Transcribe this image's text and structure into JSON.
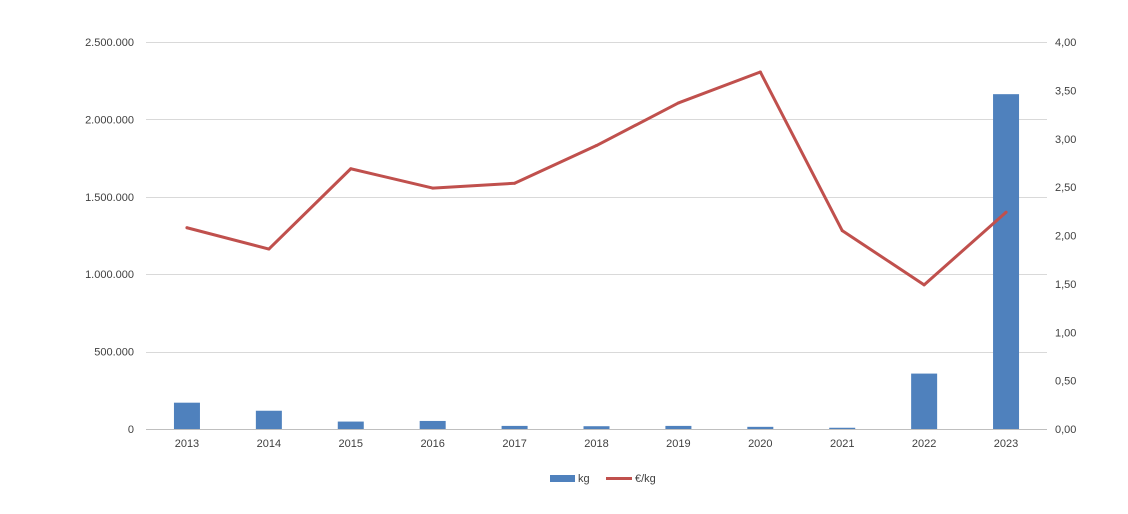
{
  "chart_data": {
    "type": "bar+line",
    "title": "",
    "categories": [
      "2013",
      "2014",
      "2015",
      "2016",
      "2017",
      "2018",
      "2019",
      "2020",
      "2021",
      "2022",
      "2023"
    ],
    "series": [
      {
        "name": "kg",
        "type": "bar",
        "axis": "left",
        "color": "#4F81BD",
        "values": [
          170000,
          118000,
          48000,
          52000,
          20000,
          18000,
          20000,
          14000,
          8000,
          358000,
          2163000
        ]
      },
      {
        "name": "€/kg",
        "type": "line",
        "axis": "right",
        "color": "#C0504D",
        "values": [
          2.08,
          1.86,
          2.69,
          2.49,
          2.54,
          2.93,
          3.37,
          3.69,
          2.05,
          1.49,
          2.24
        ]
      }
    ],
    "y_left": {
      "min": 0,
      "max": 2500000,
      "ticks": [
        0,
        500000,
        1000000,
        1500000,
        2000000,
        2500000
      ],
      "tick_labels": [
        "0",
        "500.000",
        "1.000.000",
        "1.500.000",
        "2.000.000",
        "2.500.000"
      ]
    },
    "y_right": {
      "min": 0,
      "max": 4,
      "ticks": [
        0,
        0.5,
        1,
        1.5,
        2,
        2.5,
        3,
        3.5,
        4
      ],
      "tick_labels": [
        "0,00",
        "0,50",
        "1,00",
        "1,50",
        "2,00",
        "2,50",
        "3,00",
        "3,50",
        "4,00"
      ]
    },
    "grid": true,
    "legend": {
      "position": "bottom",
      "entries": [
        "kg",
        "€/kg"
      ]
    }
  }
}
